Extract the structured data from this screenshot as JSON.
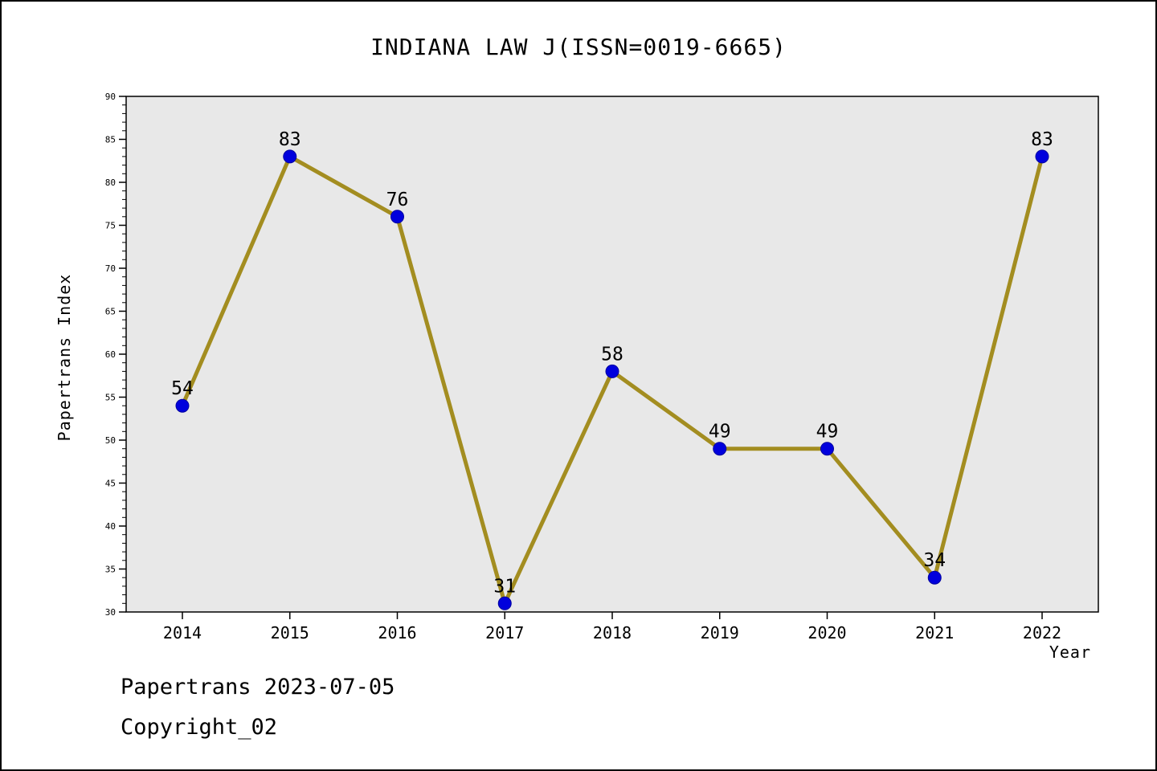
{
  "title": "INDIANA LAW J(ISSN=0019-6665)",
  "footer": {
    "line1": "Papertrans 2023-07-05",
    "line2": "Copyright_02"
  },
  "chart_data": {
    "type": "line",
    "title": "INDIANA LAW J(ISSN=0019-6665)",
    "x": [
      "2014",
      "2015",
      "2016",
      "2017",
      "2018",
      "2019",
      "2020",
      "2021",
      "2022"
    ],
    "values": [
      54,
      83,
      76,
      31,
      58,
      49,
      49,
      34,
      83
    ],
    "point_labels": [
      "54",
      "83",
      "76",
      "31",
      "58",
      "49",
      "49",
      "34",
      "83"
    ],
    "xlabel": "Year",
    "ylabel": "Papertrans Index",
    "ylim": [
      30,
      90
    ],
    "ytick_step": 5,
    "ytick_labels": [
      "30",
      "35",
      "40",
      "45",
      "50",
      "55",
      "60",
      "65",
      "70",
      "75",
      "80",
      "85",
      "90"
    ],
    "grid": false,
    "legend": "none",
    "line_color": "#a38d20",
    "marker_color": "#0000dd",
    "marker_edge_color": "#0000a0",
    "plot_bg": "#e8e8e8",
    "axis_color": "#000000",
    "label_color": "#000000"
  }
}
